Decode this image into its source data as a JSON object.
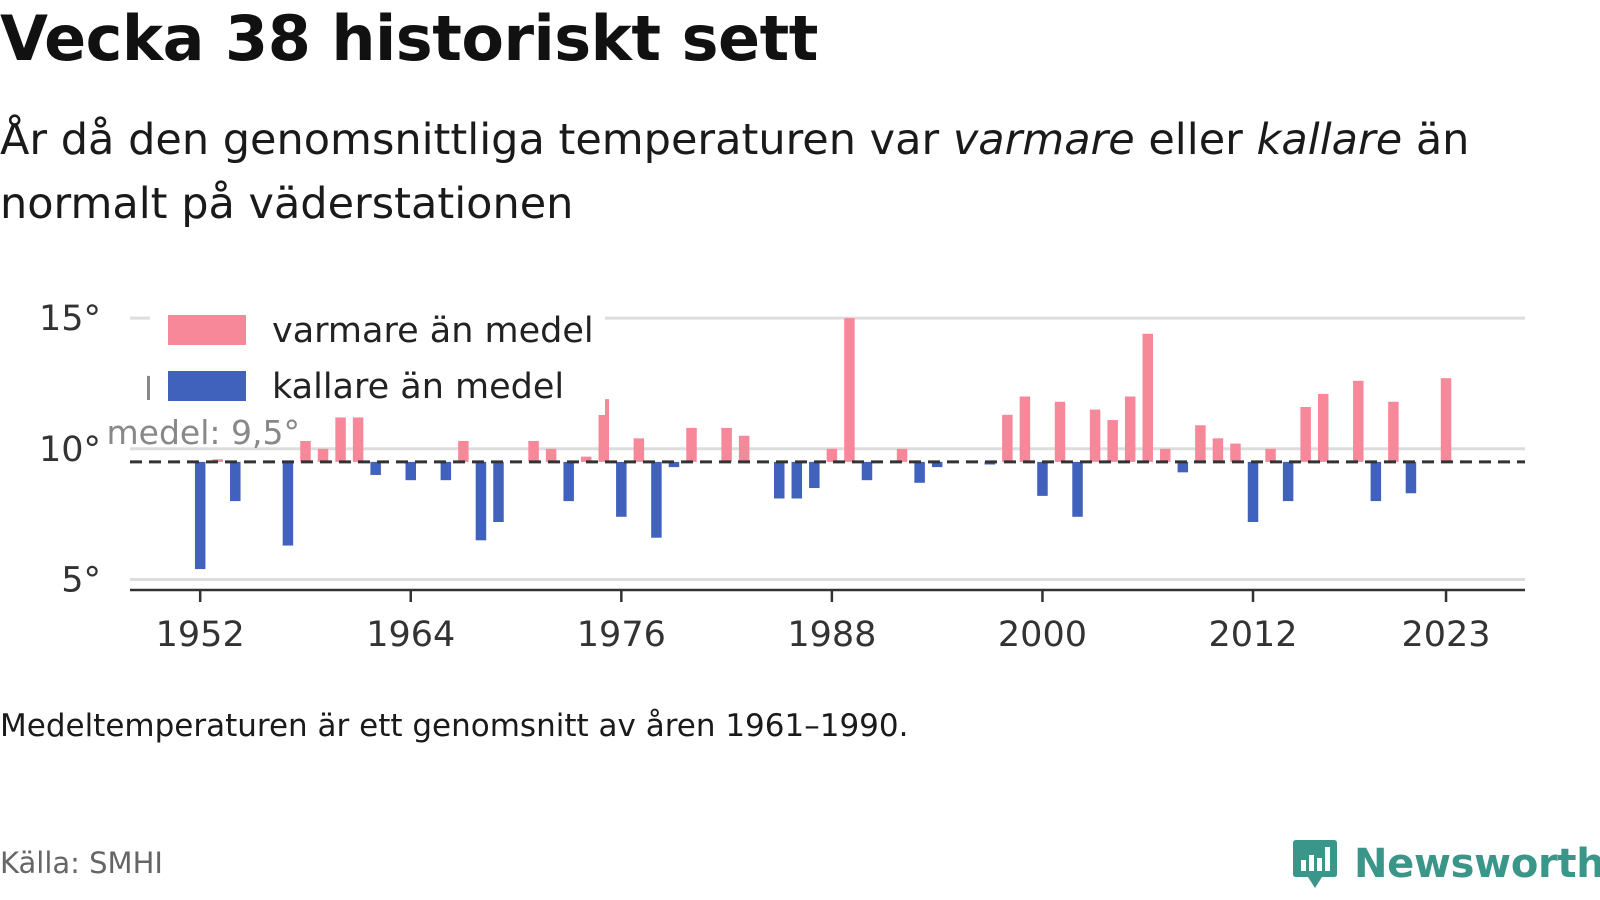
{
  "title": "Vecka 38 historiskt sett",
  "subtitle": {
    "part1": "År då den genomsnittliga temperaturen var ",
    "em1": "varmare",
    "part2": " eller ",
    "em2": "kallare",
    "part3": " än normalt på väderstationen"
  },
  "note": "Medeltemperaturen är ett genomsnitt av åren 1961–1990.",
  "source": "Källa: SMHI",
  "brand": {
    "name": "Newsworthy",
    "icon": "newsworthy-logo-icon"
  },
  "colors": {
    "warmer": "#f7889a",
    "colder": "#4162bc",
    "grid": "#dddddd",
    "axis": "#333333",
    "avg_line": "#333333",
    "brand": "#3a9688"
  },
  "chart_data": {
    "type": "bar",
    "baseline": 9.5,
    "baseline_label": [
      "Historiskt",
      "medel: 9,5°"
    ],
    "ylim": [
      4.6,
      15.5
    ],
    "xlim": [
      1948,
      2027.5
    ],
    "yticks": [
      5,
      10,
      15
    ],
    "ytick_labels": [
      "5°",
      "10°",
      "15°"
    ],
    "xticks": [
      1952,
      1964,
      1976,
      1988,
      2000,
      2012,
      2023
    ],
    "xtick_labels": [
      "1952",
      "1964",
      "1976",
      "1988",
      "2000",
      "2012",
      "2023"
    ],
    "legend": {
      "position": "top-left",
      "entries": [
        {
          "label": "varmare än medel",
          "color": "#f7889a"
        },
        {
          "label": "kallare än medel",
          "color": "#4162bc"
        }
      ]
    },
    "years": [
      1951,
      1952,
      1953,
      1954,
      1955,
      1956,
      1957,
      1958,
      1959,
      1960,
      1961,
      1962,
      1963,
      1964,
      1965,
      1966,
      1967,
      1968,
      1969,
      1970,
      1971,
      1972,
      1973,
      1974,
      1975,
      1976,
      1977,
      1978,
      1979,
      1980,
      1981,
      1982,
      1983,
      1984,
      1985,
      1986,
      1987,
      1988,
      1989,
      1990,
      1991,
      1992,
      1993,
      1994,
      1995,
      1996,
      1997,
      1998,
      1999,
      2000,
      2001,
      2002,
      2003,
      2004,
      2005,
      2006,
      2007,
      2008,
      2009,
      2010,
      2011,
      2012,
      2013,
      2014,
      2015,
      2016,
      2017,
      2018,
      2019,
      2020,
      2021,
      2022,
      2023
    ],
    "values": [
      9.5,
      5.4,
      9.6,
      8.0,
      9.5,
      9.5,
      6.3,
      10.3,
      10.0,
      11.2,
      11.2,
      9.0,
      9.5,
      8.8,
      9.5,
      8.8,
      10.3,
      6.5,
      7.2,
      9.5,
      10.3,
      10.0,
      8.0,
      9.7,
      11.9,
      7.4,
      10.4,
      6.6,
      9.3,
      10.8,
      9.5,
      10.8,
      10.5,
      9.5,
      8.1,
      8.1,
      8.5,
      10.0,
      15.0,
      8.8,
      9.5,
      10.0,
      8.7,
      9.3,
      9.5,
      9.5,
      9.4,
      11.3,
      12.0,
      8.2,
      11.8,
      7.4,
      11.5,
      11.1,
      12.0,
      14.4,
      10.0,
      9.1,
      10.9,
      10.4,
      10.2,
      7.2,
      10.0,
      8.0,
      11.6,
      12.1,
      9.5,
      12.6,
      8.0,
      11.8,
      8.3,
      9.5,
      12.7
    ]
  }
}
